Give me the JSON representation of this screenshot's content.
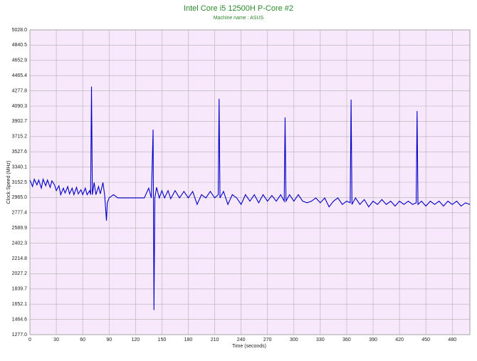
{
  "chart_data": {
    "type": "line",
    "title": "Intel Core i5 12500H P-Core #2",
    "subtitle": "Machine name : ASUS",
    "x_label": "Time (seconds)",
    "y_label": "Clock Speed (MHz)",
    "color": "#0000c8",
    "grid": true,
    "xlim": [
      0,
      500
    ],
    "xticks": [
      0,
      30,
      60,
      90,
      120,
      150,
      180,
      210,
      240,
      270,
      300,
      330,
      360,
      390,
      420,
      450,
      480
    ],
    "ylim": [
      1277,
      5028
    ],
    "yticks": [
      {
        "value": 1277,
        "label": "1277.0"
      },
      1464.6,
      1652.1,
      1839.7,
      2027.2,
      2214.8,
      2402.3,
      2589.9,
      2777.4,
      {
        "value": 2965,
        "label": "2965.0"
      },
      3152.5,
      3340.1,
      3527.6,
      3715.2,
      3902.7,
      4090.3,
      4277.8,
      4465.4,
      4652.9,
      4840.5,
      {
        "value": 5028,
        "label": "5028.0"
      }
    ],
    "x": [
      0,
      3,
      5,
      8,
      10,
      13,
      15,
      18,
      20,
      23,
      25,
      28,
      30,
      33,
      35,
      38,
      40,
      43,
      45,
      48,
      50,
      53,
      55,
      58,
      60,
      63,
      65,
      68,
      69,
      70,
      71,
      73,
      75,
      78,
      80,
      83,
      85,
      87,
      88,
      90,
      95,
      100,
      110,
      120,
      130,
      135,
      138,
      140,
      141,
      142,
      144,
      147,
      150,
      153,
      157,
      160,
      165,
      170,
      175,
      180,
      185,
      190,
      195,
      200,
      205,
      210,
      214,
      215,
      216,
      220,
      225,
      230,
      235,
      240,
      245,
      250,
      255,
      260,
      265,
      270,
      275,
      280,
      285,
      289,
      290,
      291,
      295,
      300,
      305,
      310,
      315,
      320,
      325,
      330,
      335,
      340,
      345,
      350,
      355,
      360,
      364,
      365,
      366,
      370,
      375,
      380,
      385,
      390,
      395,
      400,
      405,
      410,
      415,
      420,
      425,
      430,
      435,
      439,
      440,
      441,
      445,
      450,
      455,
      460,
      465,
      470,
      475,
      480,
      485,
      490,
      495,
      500
    ],
    "values": [
      3180,
      3100,
      3190,
      3120,
      3180,
      3080,
      3190,
      3110,
      3180,
      3090,
      3170,
      3120,
      3050,
      3110,
      3000,
      3080,
      3020,
      3100,
      3010,
      3080,
      3000,
      3090,
      3010,
      3060,
      3000,
      3080,
      3000,
      3050,
      3000,
      4330,
      3000,
      3150,
      3000,
      3100,
      3010,
      3150,
      2990,
      2680,
      2900,
      2960,
      3000,
      2960,
      2960,
      2960,
      2960,
      3080,
      2960,
      3800,
      1580,
      2960,
      3090,
      2960,
      3050,
      2960,
      3050,
      2950,
      3050,
      2960,
      3040,
      2960,
      3040,
      2880,
      3000,
      2960,
      3040,
      2960,
      3000,
      4180,
      2960,
      3040,
      2880,
      3000,
      2960,
      2880,
      3000,
      2920,
      3000,
      2900,
      3000,
      2920,
      2990,
      2920,
      3000,
      2920,
      3950,
      2920,
      3000,
      2920,
      3000,
      2920,
      2900,
      2920,
      2960,
      2900,
      2960,
      2850,
      2920,
      2960,
      2880,
      2920,
      2900,
      4170,
      2880,
      2960,
      2880,
      2940,
      2850,
      2920,
      2880,
      2940,
      2880,
      2920,
      2860,
      2920,
      2880,
      2920,
      2880,
      2900,
      4030,
      2880,
      2920,
      2860,
      2920,
      2880,
      2920,
      2860,
      2920,
      2880,
      2920,
      2860,
      2900,
      2880
    ]
  }
}
